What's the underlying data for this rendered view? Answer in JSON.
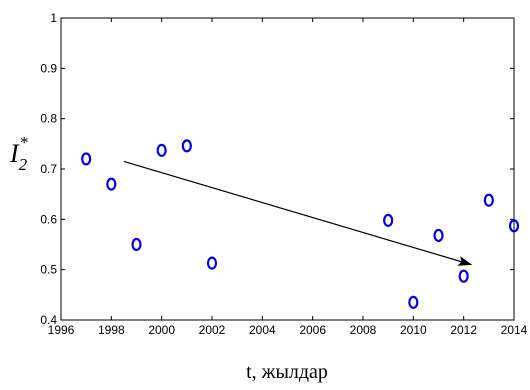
{
  "chart_data": {
    "type": "scatter",
    "xlabel": "t, жылдар",
    "ylabel": {
      "main": "I",
      "sub": "2",
      "sup": "*"
    },
    "xlim": [
      1996,
      2014
    ],
    "ylim": [
      0.4,
      1.0
    ],
    "xticks": [
      "1996",
      "1998",
      "2000",
      "2002",
      "2004",
      "2006",
      "2008",
      "2010",
      "2012",
      "2014"
    ],
    "yticks": [
      "0.4",
      "0.5",
      "0.6",
      "0.7",
      "0.8",
      "0.9",
      "1"
    ],
    "marker_color": "#0000ee",
    "grid": false,
    "points": [
      {
        "x": 1997,
        "y": 0.72
      },
      {
        "x": 1998,
        "y": 0.67
      },
      {
        "x": 1999,
        "y": 0.55
      },
      {
        "x": 2000,
        "y": 0.737
      },
      {
        "x": 2001,
        "y": 0.746
      },
      {
        "x": 2002,
        "y": 0.513
      },
      {
        "x": 2009,
        "y": 0.598
      },
      {
        "x": 2010,
        "y": 0.435
      },
      {
        "x": 2011,
        "y": 0.568
      },
      {
        "x": 2012,
        "y": 0.487
      },
      {
        "x": 2013,
        "y": 0.638
      },
      {
        "x": 2014,
        "y": 0.587
      }
    ],
    "annotations": [
      {
        "type": "arrow",
        "from": {
          "x": 1998.5,
          "y": 0.715
        },
        "to": {
          "x": 2012.3,
          "y": 0.51
        }
      }
    ]
  }
}
